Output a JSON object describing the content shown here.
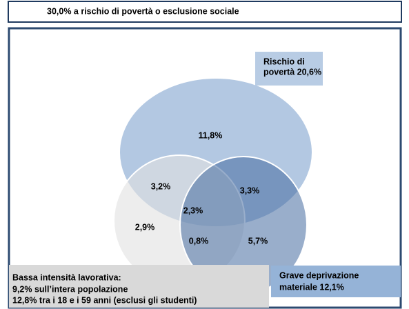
{
  "header": {
    "title": "30,0% a rischio di povertà o esclusione sociale"
  },
  "sets": [
    {
      "lines": [
        "Rischio di",
        "povertà 20,6%"
      ]
    },
    {
      "lines": [
        "Grave deprivazione",
        "materiale 12,1%"
      ]
    },
    {
      "lines": [
        "Bassa intensità lavorativa:",
        "9,2% sull’intera popolazione",
        "12,8% tra i 18 e i 59 anni (esclusi gli studenti)"
      ]
    }
  ],
  "regions": [
    "11,8%",
    "3,2%",
    "3,3%",
    "2,3%",
    "2,9%",
    "0,8%",
    "5,7%"
  ]
}
